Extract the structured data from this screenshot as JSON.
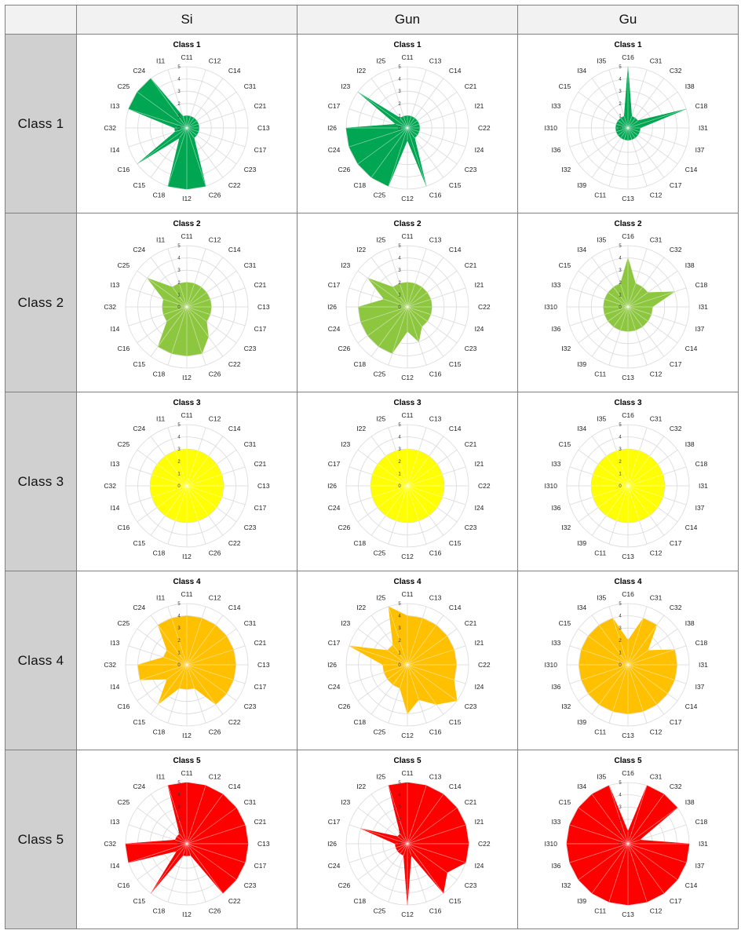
{
  "table": {
    "corner": "",
    "columns": [
      "Si",
      "Gun",
      "Gu"
    ],
    "rows": [
      "Class  1",
      "Class  2",
      "Class  3",
      "Class  4",
      "Class  5"
    ]
  },
  "chart_data": [
    {
      "type": "radar",
      "title": "Class 1",
      "region": "Si",
      "color": "#00a651",
      "rmax": 5,
      "ticks": [
        "0",
        "1",
        "2",
        "3",
        "4",
        "5"
      ],
      "categories": [
        "C11",
        "C12",
        "C14",
        "C31",
        "C21",
        "C13",
        "C17",
        "C23",
        "C22",
        "C26",
        "I12",
        "C18",
        "C15",
        "C16",
        "I14",
        "C32",
        "I13",
        "C25",
        "C24",
        "I11"
      ],
      "values": [
        1,
        1,
        1,
        1,
        1,
        1,
        1,
        1,
        1,
        5,
        5,
        5,
        1,
        5,
        1,
        1,
        5,
        5,
        5,
        1
      ]
    },
    {
      "type": "radar",
      "title": "Class 1",
      "region": "Gun",
      "color": "#00a651",
      "rmax": 5,
      "ticks": [
        "0",
        "1",
        "2",
        "3",
        "4",
        "5"
      ],
      "categories": [
        "C11",
        "C13",
        "C14",
        "C21",
        "I21",
        "C22",
        "I24",
        "C23",
        "C15",
        "C16",
        "C12",
        "C25",
        "C18",
        "C26",
        "C24",
        "I26",
        "C17",
        "I23",
        "I22",
        "I25"
      ],
      "values": [
        1,
        1,
        1,
        1,
        1,
        1,
        1,
        1,
        1,
        5,
        1,
        5,
        5,
        5,
        5,
        5,
        1,
        5,
        1,
        1
      ]
    },
    {
      "type": "radar",
      "title": "Class 1",
      "region": "Gu",
      "color": "#00a651",
      "rmax": 5,
      "ticks": [
        "0",
        "1",
        "2",
        "3",
        "4",
        "5"
      ],
      "categories": [
        "C16",
        "C31",
        "C32",
        "I38",
        "C18",
        "I31",
        "I37",
        "C14",
        "C17",
        "C12",
        "C13",
        "C11",
        "I39",
        "I32",
        "I36",
        "I310",
        "I33",
        "C15",
        "I34",
        "I35"
      ],
      "values": [
        5,
        1,
        1,
        1,
        5,
        1,
        1,
        1,
        1,
        1,
        1,
        1,
        1,
        1,
        1,
        1,
        1,
        1,
        1,
        1
      ]
    },
    {
      "type": "radar",
      "title": "Class 2",
      "region": "Si",
      "color": "#8dc63f",
      "rmax": 5,
      "ticks": [
        "0",
        "1",
        "2",
        "3",
        "4",
        "5"
      ],
      "categories": [
        "C11",
        "C12",
        "C14",
        "C31",
        "C21",
        "C13",
        "C17",
        "C23",
        "C22",
        "C26",
        "I12",
        "C18",
        "C15",
        "C16",
        "I14",
        "C32",
        "I13",
        "C25",
        "C24",
        "I11"
      ],
      "values": [
        2,
        2,
        2,
        2,
        2,
        2,
        2,
        2,
        3,
        4,
        4,
        4,
        4,
        2,
        2,
        2,
        2,
        4,
        2,
        2
      ]
    },
    {
      "type": "radar",
      "title": "Class 2",
      "region": "Gun",
      "color": "#8dc63f",
      "rmax": 5,
      "ticks": [
        "0",
        "1",
        "2",
        "3",
        "4",
        "5"
      ],
      "categories": [
        "C11",
        "C13",
        "C14",
        "C21",
        "I21",
        "C22",
        "I24",
        "C23",
        "C15",
        "C16",
        "C12",
        "C25",
        "C18",
        "C26",
        "C24",
        "I26",
        "C17",
        "I23",
        "I22",
        "I25"
      ],
      "values": [
        2,
        2,
        2,
        2,
        2,
        2,
        2,
        2,
        2,
        3,
        2,
        4,
        4,
        4,
        4,
        4,
        2,
        4,
        2,
        2
      ]
    },
    {
      "type": "radar",
      "title": "Class 2",
      "region": "Gu",
      "color": "#8dc63f",
      "rmax": 5,
      "ticks": [
        "0",
        "1",
        "2",
        "3",
        "4",
        "5"
      ],
      "categories": [
        "C16",
        "C31",
        "C32",
        "I38",
        "C18",
        "I31",
        "I37",
        "C14",
        "C17",
        "C12",
        "C13",
        "C11",
        "I39",
        "I32",
        "I36",
        "I310",
        "I33",
        "C15",
        "I34",
        "I35"
      ],
      "values": [
        4,
        2,
        2,
        2,
        4,
        2,
        2,
        2,
        2,
        2,
        2,
        2,
        2,
        2,
        2,
        2,
        2,
        2,
        2,
        2
      ]
    },
    {
      "type": "radar",
      "title": "Class 3",
      "region": "Si",
      "color": "#ffff00",
      "rmax": 5,
      "ticks": [
        "0",
        "1",
        "2",
        "3",
        "4",
        "5"
      ],
      "categories": [
        "C11",
        "C12",
        "C14",
        "C31",
        "C21",
        "C13",
        "C17",
        "C23",
        "C22",
        "C26",
        "I12",
        "C18",
        "C15",
        "C16",
        "I14",
        "C32",
        "I13",
        "C25",
        "C24",
        "I11"
      ],
      "values": [
        3,
        3,
        3,
        3,
        3,
        3,
        3,
        3,
        3,
        3,
        3,
        3,
        3,
        3,
        3,
        3,
        3,
        3,
        3,
        3
      ]
    },
    {
      "type": "radar",
      "title": "Class 3",
      "region": "Gun",
      "color": "#ffff00",
      "rmax": 5,
      "ticks": [
        "0",
        "1",
        "2",
        "3",
        "4",
        "5"
      ],
      "categories": [
        "C11",
        "C13",
        "C14",
        "C21",
        "I21",
        "C22",
        "I24",
        "C23",
        "C15",
        "C16",
        "C12",
        "C25",
        "C18",
        "C26",
        "C24",
        "I26",
        "C17",
        "I23",
        "I22",
        "I25"
      ],
      "values": [
        3,
        3,
        3,
        3,
        3,
        3,
        3,
        3,
        3,
        3,
        3,
        3,
        3,
        3,
        3,
        3,
        3,
        3,
        3,
        3
      ]
    },
    {
      "type": "radar",
      "title": "Class 3",
      "region": "Gu",
      "color": "#ffff00",
      "rmax": 5,
      "ticks": [
        "0",
        "1",
        "2",
        "3",
        "4",
        "5"
      ],
      "categories": [
        "C16",
        "C31",
        "C32",
        "I38",
        "C18",
        "I31",
        "I37",
        "C14",
        "C17",
        "C12",
        "C13",
        "C11",
        "I39",
        "I32",
        "I36",
        "I310",
        "I33",
        "C15",
        "I34",
        "I35"
      ],
      "values": [
        3,
        3,
        3,
        3,
        3,
        3,
        3,
        3,
        3,
        3,
        3,
        3,
        3,
        3,
        3,
        3,
        3,
        3,
        3,
        3
      ]
    },
    {
      "type": "radar",
      "title": "Class 4",
      "region": "Si",
      "color": "#ffc000",
      "rmax": 5,
      "ticks": [
        "0",
        "1",
        "2",
        "3",
        "4",
        "5"
      ],
      "categories": [
        "C11",
        "C12",
        "C14",
        "C31",
        "C21",
        "C13",
        "C17",
        "C23",
        "C22",
        "C26",
        "I12",
        "C18",
        "C15",
        "C16",
        "I14",
        "C32",
        "I13",
        "C25",
        "C24",
        "I11"
      ],
      "values": [
        4,
        4,
        4,
        4,
        4,
        4,
        4,
        4,
        4,
        2,
        2,
        2,
        4,
        2,
        4,
        4,
        2,
        2,
        4,
        4
      ]
    },
    {
      "type": "radar",
      "title": "Class 4",
      "region": "Gun",
      "color": "#ffc000",
      "rmax": 5,
      "ticks": [
        "0",
        "1",
        "2",
        "3",
        "4",
        "5"
      ],
      "categories": [
        "C11",
        "C13",
        "C14",
        "C21",
        "I21",
        "C22",
        "I24",
        "C23",
        "C15",
        "C16",
        "C12",
        "C25",
        "C18",
        "C26",
        "C24",
        "I26",
        "C17",
        "I23",
        "I22",
        "I25"
      ],
      "values": [
        4,
        4,
        4,
        4,
        4,
        4,
        4,
        5,
        4,
        3,
        4,
        2,
        2,
        2,
        2,
        2,
        5,
        2,
        2,
        5
      ]
    },
    {
      "type": "radar",
      "title": "Class 4",
      "region": "Gu",
      "color": "#ffc000",
      "rmax": 5,
      "ticks": [
        "0",
        "1",
        "2",
        "3",
        "4",
        "5"
      ],
      "categories": [
        "C16",
        "C31",
        "C32",
        "I38",
        "C18",
        "I31",
        "I37",
        "C14",
        "C17",
        "C12",
        "C13",
        "C11",
        "I39",
        "I32",
        "I36",
        "I310",
        "I33",
        "C15",
        "I34",
        "I35"
      ],
      "values": [
        2,
        4,
        4,
        2,
        4,
        4,
        4,
        4,
        4,
        4,
        4,
        4,
        4,
        4,
        4,
        4,
        4,
        4,
        4,
        4
      ]
    },
    {
      "type": "radar",
      "title": "Class 5",
      "region": "Si",
      "color": "#ff0000",
      "rmax": 5,
      "ticks": [
        "0",
        "1",
        "2",
        "3",
        "4",
        "5"
      ],
      "categories": [
        "C11",
        "C12",
        "C14",
        "C31",
        "C21",
        "C13",
        "C17",
        "C23",
        "C22",
        "C26",
        "I12",
        "C18",
        "C15",
        "C16",
        "I14",
        "C32",
        "I13",
        "C25",
        "C24",
        "I11"
      ],
      "values": [
        5,
        5,
        5,
        5,
        5,
        5,
        5,
        5,
        5,
        1,
        1,
        1,
        5,
        1,
        5,
        5,
        1,
        1,
        1,
        5
      ]
    },
    {
      "type": "radar",
      "title": "Class 5",
      "region": "Gun",
      "color": "#ff0000",
      "rmax": 5,
      "ticks": [
        "0",
        "1",
        "2",
        "3",
        "4",
        "5"
      ],
      "categories": [
        "C11",
        "C13",
        "C14",
        "C21",
        "I21",
        "C22",
        "I24",
        "C23",
        "C15",
        "C16",
        "C12",
        "C25",
        "C18",
        "C26",
        "C24",
        "I26",
        "C17",
        "I23",
        "I22",
        "I25"
      ],
      "values": [
        5,
        5,
        5,
        5,
        5,
        5,
        5,
        4,
        5,
        1,
        5,
        1,
        1,
        1,
        1,
        1,
        4,
        1,
        1,
        5
      ]
    },
    {
      "type": "radar",
      "title": "Class 5",
      "region": "Gu",
      "color": "#ff0000",
      "rmax": 5,
      "ticks": [
        "0",
        "1",
        "2",
        "3",
        "4",
        "5"
      ],
      "categories": [
        "C16",
        "C31",
        "C32",
        "I38",
        "C18",
        "I31",
        "I37",
        "C14",
        "C17",
        "C12",
        "C13",
        "C11",
        "I39",
        "I32",
        "I36",
        "I310",
        "I33",
        "C15",
        "I34",
        "I35"
      ],
      "values": [
        1,
        5,
        5,
        5,
        1,
        5,
        5,
        5,
        5,
        5,
        5,
        5,
        5,
        5,
        5,
        5,
        5,
        5,
        5,
        5
      ]
    }
  ]
}
